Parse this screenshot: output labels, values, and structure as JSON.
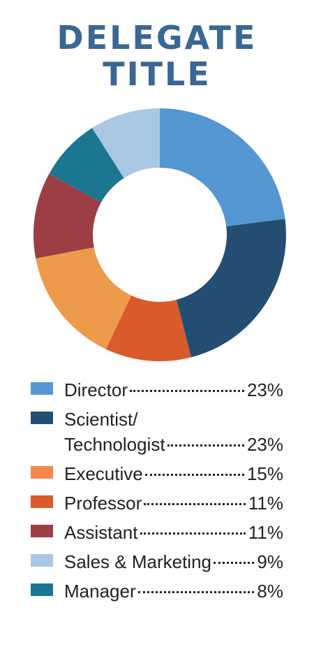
{
  "title_lines": [
    "DELEGATE",
    "TITLE"
  ],
  "chart_data": {
    "type": "pie",
    "title": "DELEGATE TITLE",
    "categories": [
      "Director",
      "Scientist/Technologist",
      "Executive",
      "Professor",
      "Assistant",
      "Sales & Marketing",
      "Manager"
    ],
    "values": [
      23,
      23,
      15,
      11,
      11,
      9,
      8
    ],
    "value_labels": [
      "23%",
      "23%",
      "15%",
      "11%",
      "11%",
      "9%",
      "8%"
    ],
    "colors": [
      "#5497d2",
      "#234d71",
      "#ee9a4b",
      "#d95a2b",
      "#9c3e44",
      "#a9c8e4",
      "#1b7790"
    ],
    "slice_order": [
      0,
      1,
      3,
      2,
      4,
      6,
      5
    ],
    "legend_colors": [
      "#5497d2",
      "#234d71",
      "#f5874a",
      "#d95a2b",
      "#9c3e44",
      "#a9c8e4",
      "#1b7790"
    ],
    "legend_placement": "bottom"
  },
  "legend": [
    {
      "lines": [
        "Director"
      ],
      "value": "23%"
    },
    {
      "lines": [
        "Scientist/",
        "Technologist"
      ],
      "value": "23%"
    },
    {
      "lines": [
        "Executive"
      ],
      "value": "15%"
    },
    {
      "lines": [
        "Professor"
      ],
      "value": "11%"
    },
    {
      "lines": [
        "Assistant"
      ],
      "value": "11%"
    },
    {
      "lines": [
        "Sales & Marketing"
      ],
      "value": "9%"
    },
    {
      "lines": [
        "Manager"
      ],
      "value": "8%"
    }
  ]
}
